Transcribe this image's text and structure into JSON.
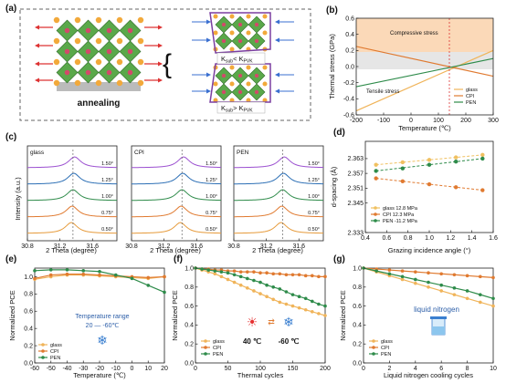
{
  "panels": {
    "a": {
      "label": "(a)",
      "annealing": "annealing",
      "ineq_top_left": "K",
      "ineq_top_sub1": "sub",
      "ineq_top_mid": "< K",
      "ineq_top_sub2": "PVK",
      "ineq_bot_left": "K",
      "ineq_bot_sub1": "sub",
      "ineq_bot_mid": "> K",
      "ineq_bot_sub2": "PVK"
    },
    "b": {
      "label": "(b)",
      "compressive": "Compressive stress",
      "tensile": "Tensile stress",
      "xlabel": "Temperature (℃)",
      "ylabel": "Thermal stress (GPa)"
    },
    "c": {
      "label": "(c)",
      "ylabel": "Intensity (a.u.)",
      "xlabel": "2 Theta (degree)",
      "sub_titles": [
        "glass",
        "CPI",
        "PEN"
      ]
    },
    "d": {
      "label": "(d)",
      "xlabel": "Grazing incidence angle (°)",
      "ylabel": "d-spacing (Å)"
    },
    "e": {
      "label": "(e)",
      "xlabel": "Temperature (℃)",
      "ylabel": "Normalized PCE",
      "note_line1": "Temperature range",
      "note_line2": "20 — -60℃"
    },
    "f": {
      "label": "(f)",
      "xlabel": "Thermal cycles",
      "ylabel": "Normalized PCE",
      "hot": "40 ℃",
      "cold": "-60 ℃"
    },
    "g": {
      "label": "(g)",
      "xlabel": "Liquid nitrogen cooling cycles",
      "ylabel": "Normalized PCE",
      "note": "liquid nitrogen"
    }
  },
  "chart_data": [
    {
      "panel": "b",
      "type": "line",
      "xlabel": "Temperature (℃)",
      "ylabel": "Thermal stress (GPa)",
      "xlim": [
        -200,
        300
      ],
      "ylim": [
        -0.6,
        0.6
      ],
      "x_ticks": [
        -200,
        -100,
        0,
        100,
        200,
        300
      ],
      "y_ticks": [
        -0.6,
        -0.4,
        -0.2,
        0.0,
        0.2,
        0.4,
        0.6
      ],
      "x": [
        -200,
        300
      ],
      "series": [
        {
          "name": "glass",
          "color": "#f0b45a",
          "values": [
            -0.55,
            0.2
          ]
        },
        {
          "name": "CPI",
          "color": "#e07a30",
          "values": [
            0.25,
            -0.12
          ]
        },
        {
          "name": "PEN",
          "color": "#2e8b4a",
          "values": [
            -0.25,
            0.1
          ]
        }
      ]
    },
    {
      "panel": "c",
      "type": "line",
      "xlabel": "2 Theta (degree)",
      "ylabel": "Intensity (a.u.)",
      "xlim": [
        30.8,
        31.9
      ],
      "x_ticks": [
        30.8,
        31.2,
        31.6
      ],
      "angle_labels": [
        "0.50°",
        "0.75°",
        "1.00°",
        "1.25°",
        "1.50°"
      ],
      "curve_colors": [
        "#e69a3a",
        "#e07a30",
        "#2e8b4a",
        "#2c6fb5",
        "#9b4fd0"
      ],
      "subplots": [
        {
          "title": "glass",
          "peaks": [
            31.34,
            31.35,
            31.36,
            31.37,
            31.38
          ]
        },
        {
          "title": "CPI",
          "peaks": [
            31.4,
            31.41,
            31.42,
            31.43,
            31.44
          ]
        },
        {
          "title": "PEN",
          "peaks": [
            31.38,
            31.39,
            31.4,
            31.41,
            31.42
          ]
        }
      ]
    },
    {
      "panel": "d",
      "type": "scatter",
      "xlabel": "Grazing incidence angle (°)",
      "ylabel": "d-spacing (Å)",
      "xlim": [
        0.4,
        1.6
      ],
      "ylim": [
        2.333,
        2.37
      ],
      "x_ticks": [
        0.4,
        0.6,
        0.8,
        1.0,
        1.2,
        1.4,
        1.6
      ],
      "y_ticks": [
        2.333,
        2.345,
        2.351,
        2.357,
        2.363
      ],
      "x": [
        0.5,
        0.75,
        1.0,
        1.25,
        1.5
      ],
      "series": [
        {
          "name": "glass 12.8 MPa",
          "color": "#f0c060",
          "values": [
            2.3605,
            2.3615,
            2.3625,
            2.3635,
            2.3645
          ]
        },
        {
          "name": "CPI 12.3 MPa",
          "color": "#e07a30",
          "values": [
            2.355,
            2.3538,
            2.3526,
            2.3514,
            2.3502
          ]
        },
        {
          "name": "PEN -11.2 MPa",
          "color": "#2e8b4a",
          "values": [
            2.358,
            2.359,
            2.3605,
            2.3618,
            2.363
          ]
        }
      ]
    },
    {
      "panel": "e",
      "type": "line",
      "xlabel": "Temperature (℃)",
      "ylabel": "Normalized PCE",
      "xlim": [
        -60,
        20
      ],
      "ylim": [
        0.0,
        1.1
      ],
      "x_ticks": [
        -60,
        -50,
        -40,
        -30,
        -20,
        -10,
        0,
        10,
        20
      ],
      "y_ticks": [
        0.0,
        0.2,
        0.4,
        0.6,
        0.8,
        1.0
      ],
      "x": [
        -60,
        -50,
        -40,
        -30,
        -20,
        -10,
        0,
        10,
        20
      ],
      "series": [
        {
          "name": "glass",
          "color": "#f0b45a",
          "values": [
            0.97,
            1.0,
            1.02,
            1.02,
            1.01,
            1.0,
            0.99,
            0.98,
            1.0
          ]
        },
        {
          "name": "CPI",
          "color": "#e07a30",
          "values": [
            0.98,
            1.02,
            1.03,
            1.03,
            1.02,
            1.01,
            1.0,
            0.99,
            1.0
          ]
        },
        {
          "name": "PEN",
          "color": "#2e8b4a",
          "values": [
            1.07,
            1.08,
            1.08,
            1.07,
            1.06,
            1.02,
            0.98,
            0.9,
            0.82
          ]
        }
      ]
    },
    {
      "panel": "f",
      "type": "line",
      "xlabel": "Thermal cycles",
      "ylabel": "Normalized PCE",
      "xlim": [
        0,
        200
      ],
      "ylim": [
        0.0,
        1.0
      ],
      "x_ticks": [
        0,
        50,
        100,
        150,
        200
      ],
      "y_ticks": [
        0.0,
        0.2,
        0.4,
        0.6,
        0.8,
        1.0
      ],
      "x": [
        0,
        10,
        20,
        30,
        40,
        50,
        60,
        70,
        80,
        90,
        100,
        110,
        120,
        130,
        140,
        150,
        160,
        170,
        180,
        190,
        200
      ],
      "series": [
        {
          "name": "glass",
          "color": "#f0b45a",
          "values": [
            1.0,
            0.98,
            0.96,
            0.94,
            0.91,
            0.88,
            0.85,
            0.82,
            0.79,
            0.76,
            0.73,
            0.7,
            0.67,
            0.64,
            0.62,
            0.6,
            0.58,
            0.56,
            0.54,
            0.52,
            0.5
          ]
        },
        {
          "name": "CPI",
          "color": "#e07a30",
          "values": [
            1.0,
            0.99,
            0.99,
            0.98,
            0.98,
            0.97,
            0.97,
            0.96,
            0.96,
            0.96,
            0.95,
            0.95,
            0.94,
            0.94,
            0.93,
            0.93,
            0.93,
            0.92,
            0.92,
            0.91,
            0.91
          ]
        },
        {
          "name": "PEN",
          "color": "#2e8b4a",
          "values": [
            1.0,
            0.99,
            0.98,
            0.97,
            0.96,
            0.95,
            0.93,
            0.91,
            0.89,
            0.87,
            0.85,
            0.82,
            0.8,
            0.78,
            0.75,
            0.72,
            0.7,
            0.68,
            0.65,
            0.62,
            0.6
          ]
        }
      ]
    },
    {
      "panel": "g",
      "type": "line",
      "xlabel": "Liquid nitrogen cooling cycles",
      "ylabel": "Normalized PCE",
      "xlim": [
        0,
        10
      ],
      "ylim": [
        0.0,
        1.0
      ],
      "x_ticks": [
        0,
        2,
        4,
        6,
        8,
        10
      ],
      "y_ticks": [
        0.0,
        0.2,
        0.4,
        0.6,
        0.8,
        1.0
      ],
      "x": [
        0,
        1,
        2,
        3,
        4,
        5,
        6,
        7,
        8,
        9,
        10
      ],
      "series": [
        {
          "name": "glass",
          "color": "#f0b45a",
          "values": [
            1.0,
            0.96,
            0.92,
            0.88,
            0.84,
            0.8,
            0.76,
            0.72,
            0.68,
            0.64,
            0.6
          ]
        },
        {
          "name": "CPI",
          "color": "#e07a30",
          "values": [
            1.0,
            0.99,
            0.98,
            0.97,
            0.96,
            0.95,
            0.94,
            0.93,
            0.92,
            0.91,
            0.9
          ]
        },
        {
          "name": "PEN",
          "color": "#2e8b4a",
          "values": [
            1.0,
            0.97,
            0.94,
            0.91,
            0.88,
            0.85,
            0.82,
            0.79,
            0.76,
            0.72,
            0.68
          ]
        }
      ]
    }
  ]
}
